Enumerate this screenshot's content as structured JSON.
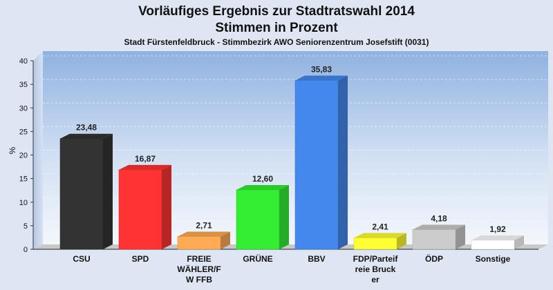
{
  "chart_data": {
    "type": "bar",
    "title": "Vorläufiges Ergebnis zur Stadtratswahl 2014",
    "subtitle1": "Stimmen in Prozent",
    "subtitle2": "Stadt Fürstenfeldbruck - Stimmbezirk AWO Seniorenzentrum Josefstift (0031)",
    "ylabel": "%",
    "ylim": [
      0,
      40
    ],
    "yticks": [
      0,
      5,
      10,
      15,
      20,
      25,
      30,
      35,
      40
    ],
    "grid": true,
    "categories": [
      "CSU",
      "SPD",
      "FREIE WÄHLER/FW FFB",
      "GRÜNE",
      "BBV",
      "FDP/Parteifreie Brucker",
      "ÖDP",
      "Sonstige"
    ],
    "category_labels": [
      [
        "CSU"
      ],
      [
        "SPD"
      ],
      [
        "FREIE",
        "WÄHLER/F",
        "W FFB"
      ],
      [
        "GRÜNE"
      ],
      [
        "BBV"
      ],
      [
        "FDP/Parteif",
        "reie Bruck",
        "er"
      ],
      [
        "ÖDP"
      ],
      [
        "Sonstige"
      ]
    ],
    "values": [
      23.48,
      16.87,
      2.71,
      12.6,
      35.83,
      2.41,
      4.18,
      1.92
    ],
    "value_labels": [
      "23,48",
      "16,87",
      "2,71",
      "12,60",
      "35,83",
      "2,41",
      "4,18",
      "1,92"
    ],
    "colors": [
      "#333333",
      "#ff3333",
      "#ffaa55",
      "#33ee33",
      "#4488ee",
      "#ffff33",
      "#cccccc",
      "#ffffff"
    ]
  }
}
